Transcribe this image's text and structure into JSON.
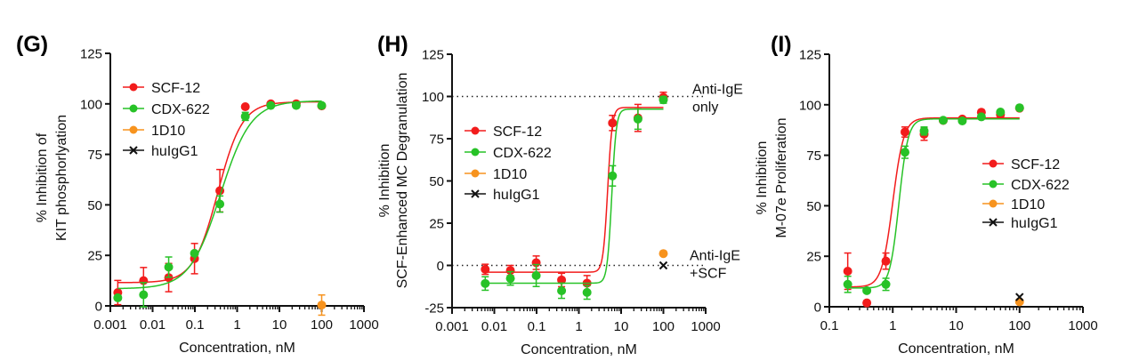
{
  "colors": {
    "SCF-12": "#f21c1c",
    "CDX-622": "#27c227",
    "1D10": "#f7931e",
    "huIgG1": "#111111",
    "axis": "#111111"
  },
  "chart_data": [
    {
      "panel_label": "(G)",
      "type": "scatter",
      "xscale": "log",
      "xlim": [
        0.001,
        1000
      ],
      "ylim": [
        0,
        125
      ],
      "xticks": [
        "0.001",
        "0.01",
        "0.1",
        "1",
        "10",
        "100",
        "1000"
      ],
      "yticks": [
        "0",
        "25",
        "50",
        "75",
        "100",
        "125"
      ],
      "xlabel": "Concentration, nM",
      "ylabel": [
        "% Inhibition of",
        "KIT phosphorlyation"
      ],
      "legend_position": "top-left",
      "legend": [
        "SCF-12",
        "CDX-622",
        "1D10",
        "huIgG1"
      ],
      "series": [
        {
          "name": "SCF-12",
          "marker": "circle",
          "x": [
            0.0015,
            0.0061,
            0.024,
            0.098,
            0.39,
            1.56,
            6.25,
            25,
            100
          ],
          "y": [
            6.6,
            12.5,
            14,
            23.4,
            57,
            98.6,
            100,
            100,
            99
          ],
          "err": [
            6,
            6.5,
            7,
            7.5,
            10.5,
            0,
            0,
            0,
            0
          ],
          "fit": {
            "bottom": 11.5,
            "top": 101,
            "ec50": 0.35,
            "hill": 1.5
          }
        },
        {
          "name": "CDX-622",
          "marker": "circle",
          "x": [
            0.0015,
            0.0061,
            0.024,
            0.098,
            0.39,
            1.56,
            6.25,
            25,
            100
          ],
          "y": [
            4,
            5.5,
            19.2,
            26,
            50.4,
            93.8,
            99.2,
            99.2,
            99.2
          ],
          "err": [
            0,
            6,
            5,
            0,
            4,
            2,
            0,
            0,
            0
          ],
          "fit": {
            "bottom": 8.5,
            "top": 101.5,
            "ec50": 0.4,
            "hill": 1.2
          }
        },
        {
          "name": "1D10",
          "marker": "circle",
          "x": [
            100
          ],
          "y": [
            0.4
          ],
          "err": [
            5
          ]
        },
        {
          "name": "huIgG1",
          "marker": "x",
          "x": [],
          "y": [],
          "err": []
        }
      ],
      "annotations": []
    },
    {
      "panel_label": "(H)",
      "type": "scatter",
      "xscale": "log",
      "xlim": [
        0.001,
        1000
      ],
      "ylim": [
        -25,
        125
      ],
      "xticks": [
        "0.001",
        "0.01",
        "0.1",
        "1",
        "10",
        "100",
        "1000"
      ],
      "yticks": [
        "-25",
        "0",
        "25",
        "50",
        "75",
        "100",
        "125"
      ],
      "xlabel": "Concentration, nM",
      "ylabel": [
        "% Inhibition",
        "SCF-Enhanced MC Degranulation"
      ],
      "legend_position": "center-left",
      "legend": [
        "SCF-12",
        "CDX-622",
        "1D10",
        "huIgG1"
      ],
      "series": [
        {
          "name": "SCF-12",
          "marker": "circle",
          "x": [
            0.0061,
            0.024,
            0.098,
            0.39,
            1.56,
            6.25,
            25,
            100
          ],
          "y": [
            -2.3,
            -3,
            1.6,
            -8.6,
            -10.5,
            84.3,
            87.3,
            99.5
          ],
          "err": [
            3,
            3,
            4,
            4,
            4.5,
            4.5,
            8,
            3
          ],
          "fit": {
            "bottom": -4,
            "top": 93.5,
            "ec50": 4.8,
            "hill": 8
          }
        },
        {
          "name": "CDX-622",
          "marker": "circle",
          "x": [
            0.0061,
            0.024,
            0.098,
            0.39,
            1.56,
            6.25,
            25,
            100
          ],
          "y": [
            -10.7,
            -7.7,
            -6,
            -15,
            -16,
            53,
            86.6,
            98
          ],
          "err": [
            4,
            4,
            6.5,
            4.5,
            4,
            6,
            6,
            2
          ],
          "fit": {
            "bottom": -10.5,
            "top": 92.5,
            "ec50": 6,
            "hill": 8
          }
        },
        {
          "name": "1D10",
          "marker": "circle",
          "x": [
            100
          ],
          "y": [
            7
          ],
          "err": [
            0
          ]
        },
        {
          "name": "huIgG1",
          "marker": "x",
          "x": [
            100
          ],
          "y": [
            0
          ],
          "err": [
            0
          ]
        }
      ],
      "reference_lines": [
        100,
        0
      ],
      "annotations": [
        {
          "y": 100,
          "lines": [
            "Anti-IgE",
            "only"
          ]
        },
        {
          "y": 0,
          "lines": [
            "Anti-IgE",
            "+SCF"
          ]
        }
      ]
    },
    {
      "panel_label": "(I)",
      "type": "scatter",
      "xscale": "log",
      "xlim": [
        0.1,
        1000
      ],
      "ylim": [
        0,
        125
      ],
      "xticks": [
        "0.1",
        "1",
        "10",
        "100",
        "1000"
      ],
      "yticks": [
        "0",
        "25",
        "50",
        "75",
        "100",
        "125"
      ],
      "xlabel": "Concentration, nM",
      "ylabel": [
        "% Inhibition",
        "M-07e Proliferation"
      ],
      "legend_position": "center-right",
      "legend": [
        "SCF-12",
        "CDX-622",
        "1D10",
        "huIgG1"
      ],
      "series": [
        {
          "name": "SCF-12",
          "marker": "circle",
          "x": [
            0.195,
            0.39,
            0.78,
            1.56,
            3.125,
            6.25,
            12.5,
            25,
            50,
            100
          ],
          "y": [
            17.6,
            1.9,
            22.6,
            86.5,
            85.4,
            92.2,
            92.9,
            96.3,
            95.1,
            98.3
          ],
          "err": [
            9,
            0,
            4,
            2.5,
            3,
            0,
            0,
            0,
            0,
            0
          ],
          "fit": {
            "bottom": 9.8,
            "top": 93.5,
            "ec50": 1.0,
            "hill": 5
          }
        },
        {
          "name": "CDX-622",
          "marker": "circle",
          "x": [
            0.195,
            0.39,
            0.78,
            1.56,
            3.125,
            6.25,
            12.5,
            25,
            50,
            100
          ],
          "y": [
            11.1,
            8,
            11.1,
            76.5,
            87,
            92.3,
            92,
            94,
            96.4,
            98.5
          ],
          "err": [
            4,
            0,
            3,
            3,
            2,
            0,
            0,
            0,
            0,
            0
          ],
          "fit": {
            "bottom": 9.3,
            "top": 93,
            "ec50": 1.25,
            "hill": 6
          }
        },
        {
          "name": "1D10",
          "marker": "circle",
          "x": [
            100
          ],
          "y": [
            2.5
          ],
          "err": [
            0
          ]
        },
        {
          "name": "huIgG1",
          "marker": "x",
          "x": [
            100
          ],
          "y": [
            4.8
          ],
          "err": [
            0
          ]
        }
      ],
      "annotations": []
    }
  ]
}
